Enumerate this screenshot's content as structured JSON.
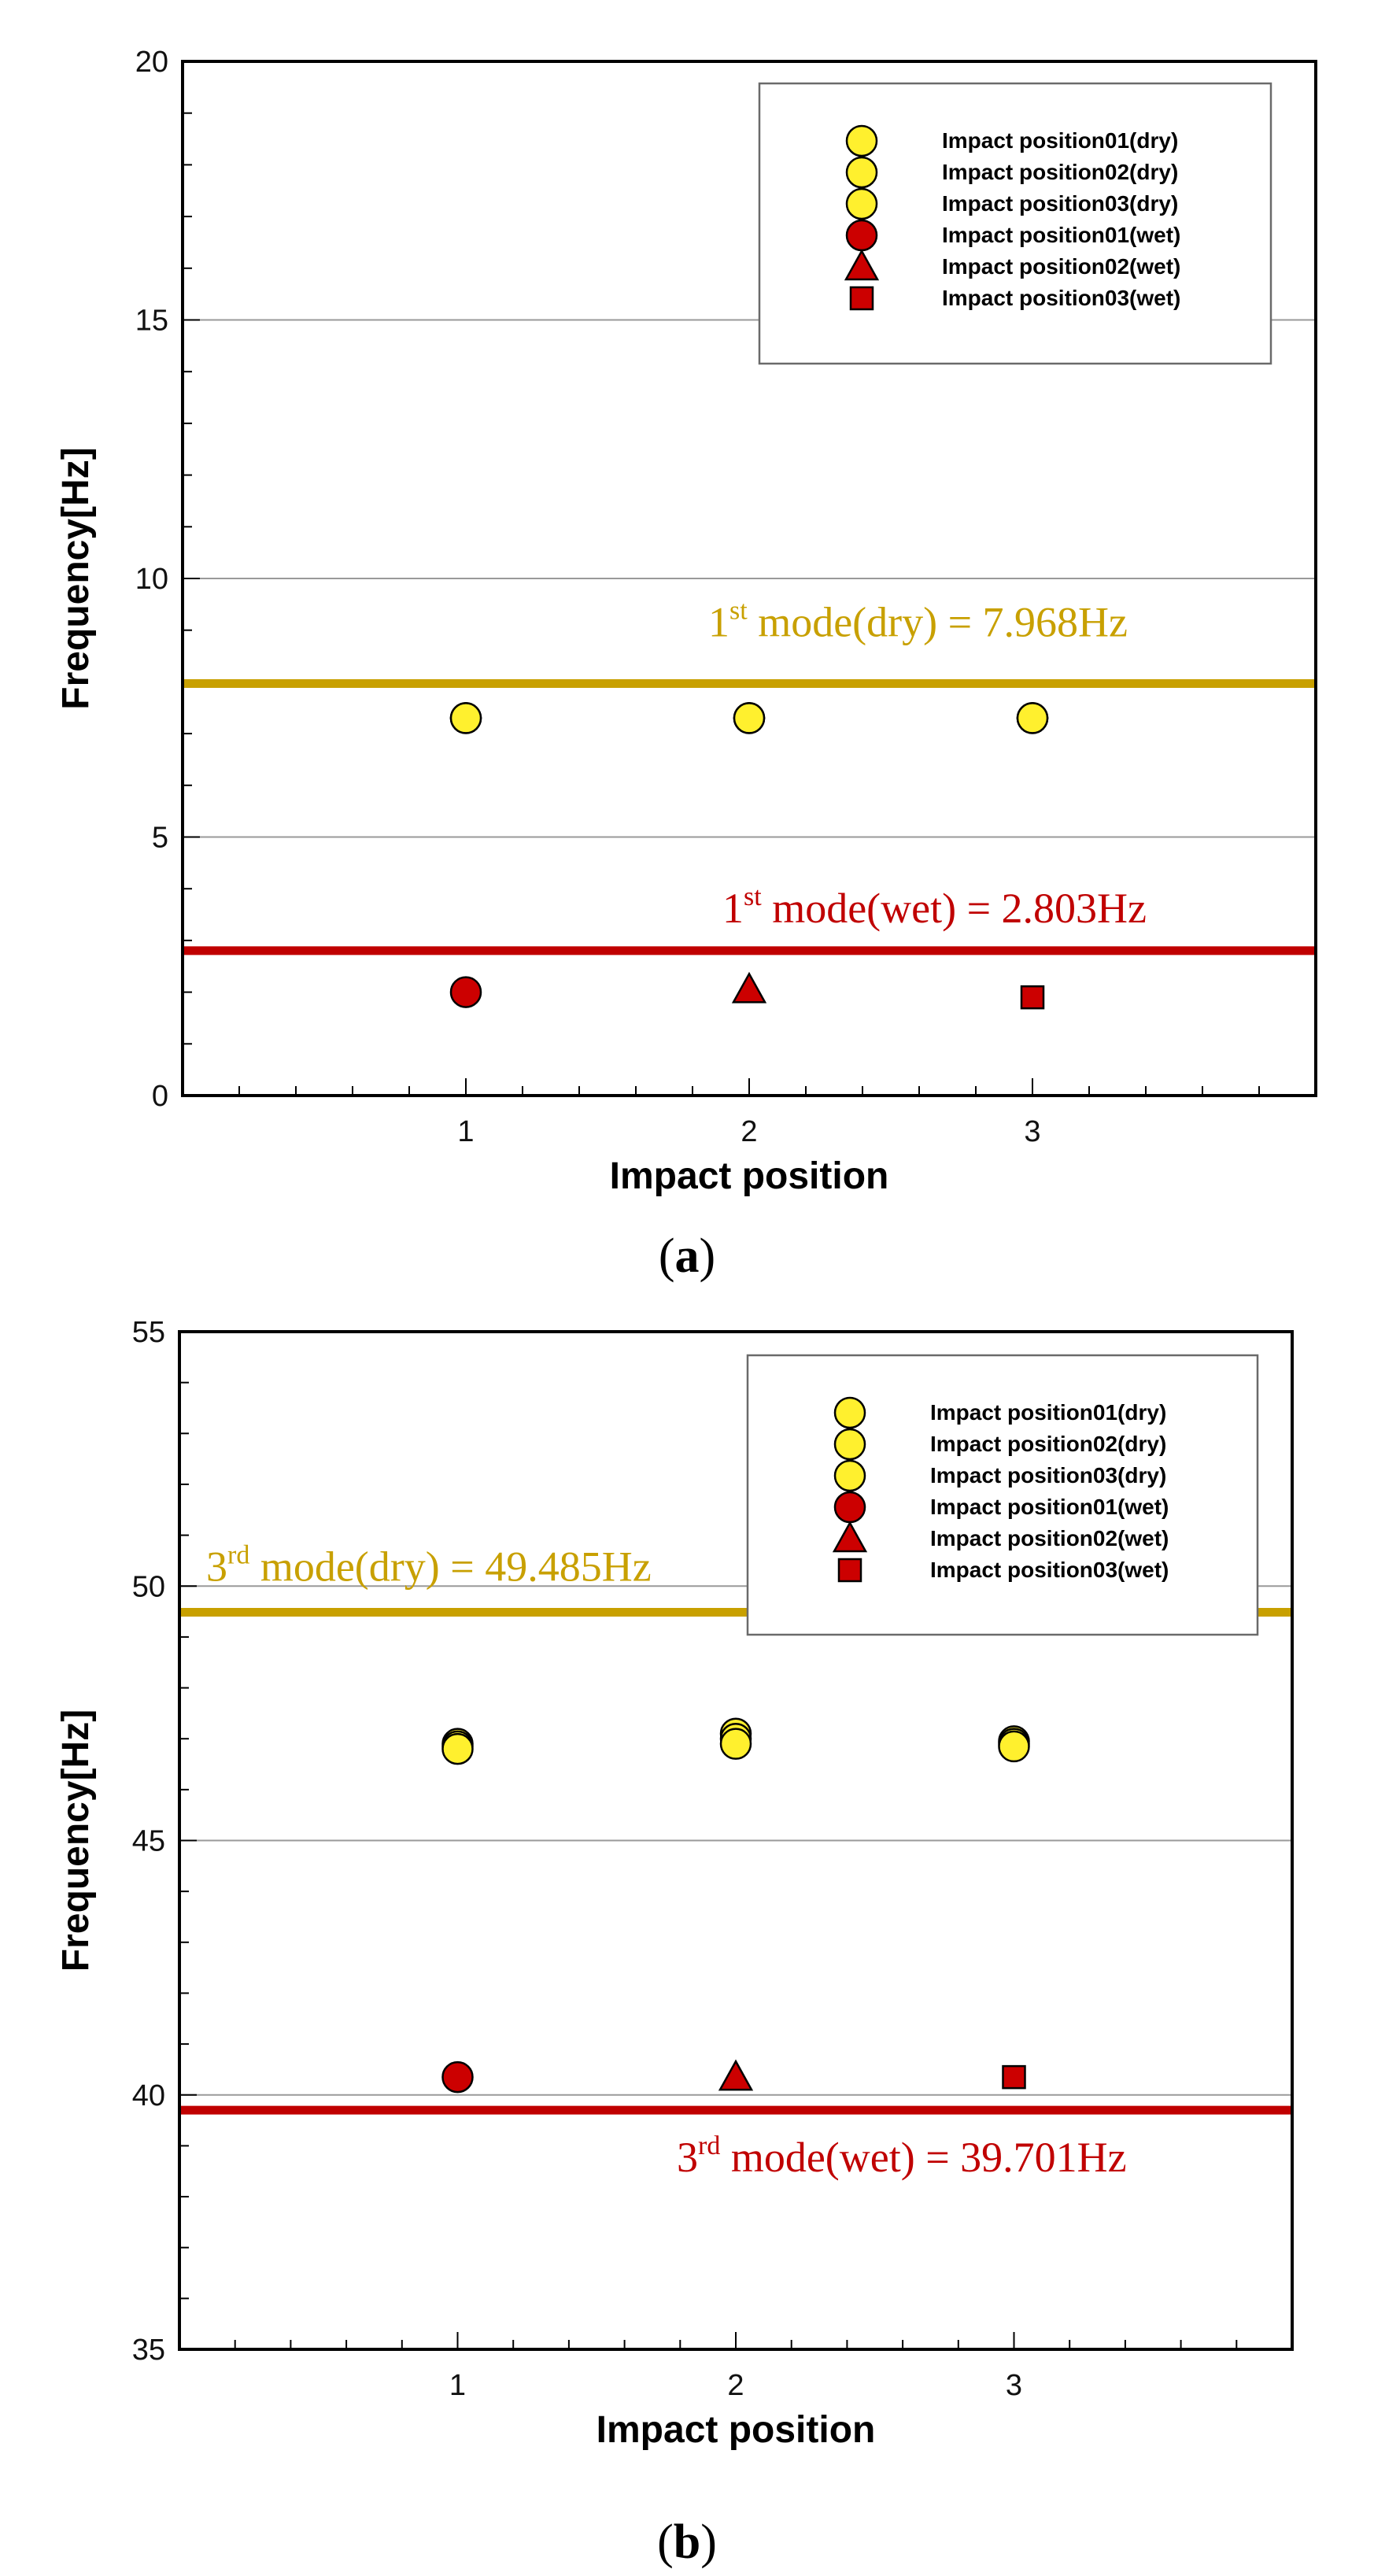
{
  "colors": {
    "dry_fill": "#FFF02E",
    "wet_fill": "#CC0000",
    "dry_line": "#C8A000",
    "wet_line": "#C00000",
    "marker_stroke": "#000000",
    "grid": "#9A9A9A"
  },
  "chart_data": [
    {
      "id": "a",
      "type": "scatter",
      "caption_letter": "a",
      "xlabel": "Impact position",
      "ylabel": "Frequency[Hz]",
      "xlim": [
        0,
        4
      ],
      "ylim": [
        0,
        20
      ],
      "xticks": [
        "1",
        "2",
        "3"
      ],
      "yticks": [
        "0",
        "5",
        "10",
        "15",
        "20"
      ],
      "grid_y": [
        5,
        10,
        15
      ],
      "legend_position": "top-right",
      "series": [
        {
          "name": "Impact position01(dry)",
          "marker": "circle",
          "color": "dry",
          "x": [
            1,
            2,
            3
          ],
          "y": [
            7.3,
            7.3,
            7.3
          ]
        },
        {
          "name": "Impact position02(dry)",
          "marker": "circle",
          "color": "dry",
          "x": [
            1,
            2,
            3
          ],
          "y": [
            7.3,
            7.3,
            7.3
          ]
        },
        {
          "name": "Impact position03(dry)",
          "marker": "circle",
          "color": "dry",
          "x": [
            1,
            2,
            3
          ],
          "y": [
            7.3,
            7.3,
            7.3
          ]
        },
        {
          "name": "Impact position01(wet)",
          "marker": "circle",
          "color": "wet",
          "x": [
            1
          ],
          "y": [
            2.0
          ]
        },
        {
          "name": "Impact position02(wet)",
          "marker": "triangle",
          "color": "wet",
          "x": [
            2
          ],
          "y": [
            2.05
          ]
        },
        {
          "name": "Impact position03(wet)",
          "marker": "square",
          "color": "wet",
          "x": [
            3
          ],
          "y": [
            1.9
          ]
        }
      ],
      "reference_lines": [
        {
          "value": 7.968,
          "color": "dry",
          "prefix": "1",
          "sup": "st",
          "suffix": " mode(dry)  = 7.968Hz"
        },
        {
          "value": 2.803,
          "color": "wet",
          "prefix": "1",
          "sup": "st",
          "suffix": " mode(wet) = 2.803Hz"
        }
      ]
    },
    {
      "id": "b",
      "type": "scatter",
      "caption_letter": "b",
      "xlabel": "Impact position",
      "ylabel": "Frequency[Hz]",
      "xlim": [
        0,
        4
      ],
      "ylim": [
        35,
        55
      ],
      "xticks": [
        "1",
        "2",
        "3"
      ],
      "yticks": [
        "35",
        "40",
        "45",
        "50",
        "55"
      ],
      "grid_y": [
        40,
        45,
        50
      ],
      "legend_position": "top-right",
      "series": [
        {
          "name": "Impact position01(dry)",
          "marker": "circle",
          "color": "dry",
          "x": [
            1,
            2,
            3
          ],
          "y": [
            46.9,
            47.1,
            46.95
          ]
        },
        {
          "name": "Impact position02(dry)",
          "marker": "circle",
          "color": "dry",
          "x": [
            1,
            2,
            3
          ],
          "y": [
            46.85,
            47.0,
            46.9
          ]
        },
        {
          "name": "Impact position03(dry)",
          "marker": "circle",
          "color": "dry",
          "x": [
            1,
            2,
            3
          ],
          "y": [
            46.8,
            46.9,
            46.85
          ]
        },
        {
          "name": "Impact position01(wet)",
          "marker": "circle",
          "color": "wet",
          "x": [
            1
          ],
          "y": [
            40.35
          ]
        },
        {
          "name": "Impact position02(wet)",
          "marker": "triangle",
          "color": "wet",
          "x": [
            2
          ],
          "y": [
            40.35
          ]
        },
        {
          "name": "Impact position03(wet)",
          "marker": "square",
          "color": "wet",
          "x": [
            3
          ],
          "y": [
            40.35
          ]
        }
      ],
      "reference_lines": [
        {
          "value": 49.485,
          "color": "dry",
          "prefix": "3",
          "sup": "rd",
          "suffix": " mode(dry)  = 49.485Hz"
        },
        {
          "value": 39.701,
          "color": "wet",
          "prefix": "3",
          "sup": "rd",
          "suffix": " mode(wet) = 39.701Hz"
        }
      ]
    }
  ]
}
